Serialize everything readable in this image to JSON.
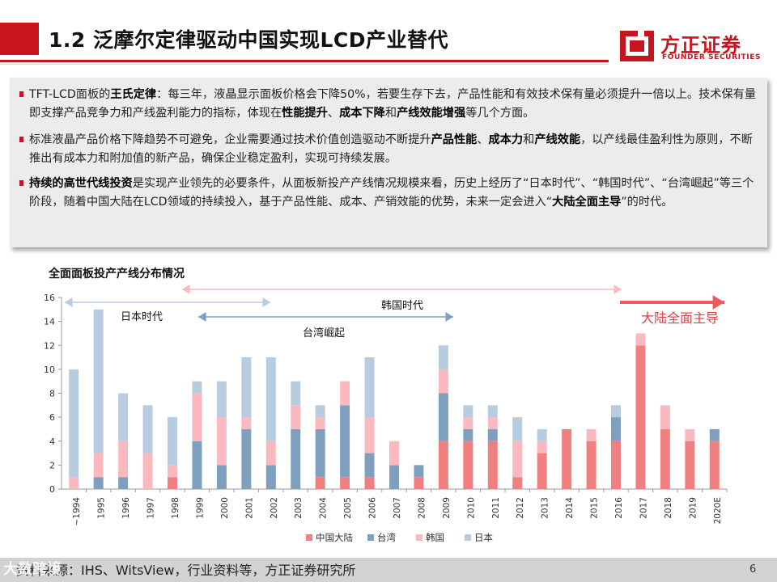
{
  "header": {
    "title": "1.2 泛摩尔定律驱动中国实现LCD产业替代",
    "logo_cn": "方正证券",
    "logo_en": "FOUNDER SECURITIES"
  },
  "paragraphs": [
    {
      "segments": [
        {
          "t": "TFT-LCD面板的",
          "b": false
        },
        {
          "t": "王氏定律",
          "b": true
        },
        {
          "t": "：每三年，液晶显示面板价格会下降50%，若要生存下去，产品性能和有效技术保有量必须提升一倍以上。技术保有量即支撑产品竞争力和产线盈利能力的指标，体现在",
          "b": false
        },
        {
          "t": "性能提升",
          "b": true
        },
        {
          "t": "、",
          "b": false
        },
        {
          "t": "成本下降",
          "b": true
        },
        {
          "t": "和",
          "b": false
        },
        {
          "t": "产线效能增强",
          "b": true
        },
        {
          "t": "等几个方面。",
          "b": false
        }
      ]
    },
    {
      "segments": [
        {
          "t": "标准液晶产品价格下降趋势不可避免，企业需要通过技术价值创造驱动不断提升",
          "b": false
        },
        {
          "t": "产品性能",
          "b": true
        },
        {
          "t": "、",
          "b": false
        },
        {
          "t": "成本力",
          "b": true
        },
        {
          "t": "和",
          "b": false
        },
        {
          "t": "产线效能",
          "b": true
        },
        {
          "t": "，以产线最佳盈利性为原则，不断推出有成本力和附加值的新产品，确保企业稳定盈利，实现可持续发展。",
          "b": false
        }
      ]
    },
    {
      "segments": [
        {
          "t": "持续的高世代线投资",
          "b": true
        },
        {
          "t": "是实现产业领先的必要条件，从面板新投产产线情况规模来看，历史上经历了“日本时代”、“韩国时代”、“台湾崛起”等三个阶段，随着中国大陆在LCD领域的持续投入，基于产品性能、成本、产销效能的优势，未来一定会进入“",
          "b": false
        },
        {
          "t": "大陆全面主导",
          "b": true
        },
        {
          "t": "”的时代。",
          "b": false
        }
      ]
    }
  ],
  "chart_data": {
    "type": "bar",
    "stacked": true,
    "title": "全面面板投产产线分布情况",
    "categories": [
      "~1994",
      "1995",
      "1996",
      "1997",
      "1998",
      "1999",
      "2000",
      "2001",
      "2002",
      "2003",
      "2004",
      "2005",
      "2006",
      "2007",
      "2008",
      "2009",
      "2010",
      "2011",
      "2012",
      "2013",
      "2014",
      "2015",
      "2016",
      "2017",
      "2018",
      "2019",
      "2020E"
    ],
    "series": [
      {
        "name": "中国大陆",
        "color": "#f08080",
        "values": [
          0,
          0,
          0,
          0,
          1,
          0,
          0,
          0,
          0,
          0,
          1,
          1,
          1,
          0,
          1,
          4,
          4,
          4,
          1,
          3,
          5,
          4,
          4,
          12,
          5,
          4,
          4
        ]
      },
      {
        "name": "台湾",
        "color": "#7f9fbf",
        "values": [
          0,
          1,
          1,
          0,
          0,
          4,
          2,
          5,
          2,
          5,
          4,
          6,
          2,
          2,
          1,
          4,
          1,
          1,
          0,
          0,
          0,
          0,
          2,
          0,
          0,
          0,
          1
        ]
      },
      {
        "name": "韩国",
        "color": "#f9b9bf",
        "values": [
          1,
          2,
          3,
          3,
          1,
          4,
          4,
          1,
          2,
          2,
          1,
          2,
          3,
          2,
          0,
          2,
          1,
          1,
          3,
          1,
          0,
          1,
          0,
          1,
          2,
          1,
          0
        ]
      },
      {
        "name": "日本",
        "color": "#b8cce0",
        "values": [
          9,
          12,
          4,
          4,
          4,
          1,
          3,
          5,
          7,
          2,
          1,
          0,
          5,
          0,
          0,
          2,
          1,
          1,
          2,
          1,
          0,
          0,
          1,
          0,
          0,
          0,
          0
        ]
      }
    ],
    "ylim": [
      0,
      16
    ],
    "yticks": [
      0,
      2,
      4,
      6,
      8,
      10,
      12,
      14,
      16
    ],
    "annotations": [
      {
        "label": "日本时代",
        "from": "~1994",
        "to": "2002",
        "color": "#b8cce0"
      },
      {
        "label": "韩国时代",
        "from": "1999",
        "to": "2016",
        "color": "#f9b9bf"
      },
      {
        "label": "台湾崛起",
        "from": "1999",
        "to": "2009",
        "color": "#7f9fbf"
      },
      {
        "label": "大陆全面主导",
        "from": "2016",
        "to": "2020E",
        "color": "#f0595e"
      }
    ]
  },
  "footer": {
    "source": "资料来源：IHS、WitsView，行业资料等，方正证券研究所",
    "page": "6",
    "watermark": "大数跨境"
  },
  "colors": {
    "brand_red": "#c8141e"
  }
}
